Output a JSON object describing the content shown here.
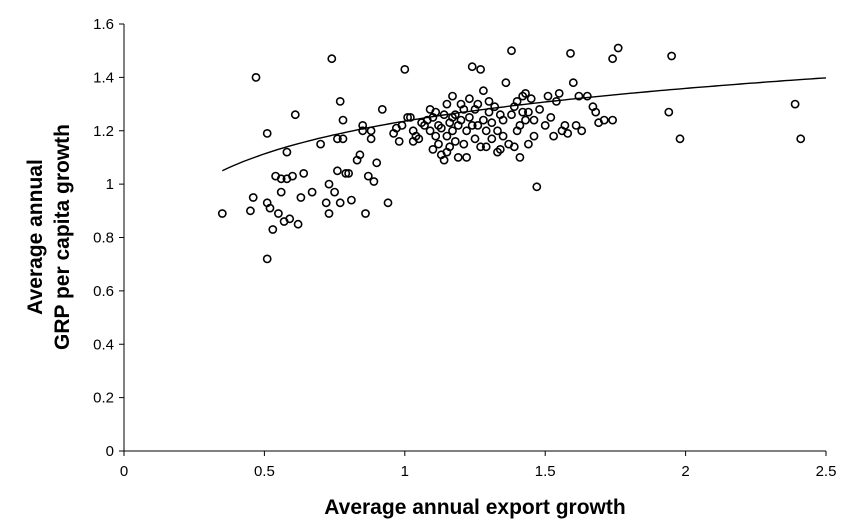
{
  "chart_data": {
    "type": "scatter",
    "title": "",
    "xlabel": "Average annual export growth",
    "ylabel_lines": [
      "Average annual",
      "GRP per capita growth"
    ],
    "xlim": [
      0,
      2.5
    ],
    "ylim": [
      0,
      1.6
    ],
    "x_ticks": [
      "0",
      "0.5",
      "1",
      "1.5",
      "2",
      "2.5"
    ],
    "y_ticks": [
      "0",
      "0.2",
      "0.4",
      "0.6",
      "0.8",
      "1",
      "1.2",
      "1.4",
      "1.6"
    ],
    "grid": false,
    "legend": "none",
    "marker": "open-circle",
    "marker_color": "#000000",
    "trendline": {
      "type": "logarithmic",
      "a": 1.236,
      "b": 0.177,
      "x_range": [
        0.35,
        2.5
      ]
    },
    "points": [
      [
        0.35,
        0.89
      ],
      [
        0.45,
        0.9
      ],
      [
        0.46,
        0.95
      ],
      [
        0.47,
        1.4
      ],
      [
        0.51,
        0.72
      ],
      [
        0.51,
        1.19
      ],
      [
        0.51,
        0.93
      ],
      [
        0.52,
        0.91
      ],
      [
        0.53,
        0.83
      ],
      [
        0.54,
        1.03
      ],
      [
        0.55,
        0.89
      ],
      [
        0.56,
        0.97
      ],
      [
        0.56,
        1.02
      ],
      [
        0.57,
        0.86
      ],
      [
        0.58,
        1.02
      ],
      [
        0.58,
        1.12
      ],
      [
        0.59,
        0.87
      ],
      [
        0.6,
        1.03
      ],
      [
        0.61,
        1.26
      ],
      [
        0.62,
        0.85
      ],
      [
        0.63,
        0.95
      ],
      [
        0.64,
        1.04
      ],
      [
        0.67,
        0.97
      ],
      [
        0.7,
        1.15
      ],
      [
        0.72,
        0.93
      ],
      [
        0.73,
        0.89
      ],
      [
        0.73,
        1.0
      ],
      [
        0.74,
        1.47
      ],
      [
        0.75,
        0.97
      ],
      [
        0.76,
        1.05
      ],
      [
        0.76,
        1.17
      ],
      [
        0.77,
        0.93
      ],
      [
        0.77,
        1.31
      ],
      [
        0.78,
        1.17
      ],
      [
        0.78,
        1.24
      ],
      [
        0.79,
        1.04
      ],
      [
        0.8,
        1.04
      ],
      [
        0.81,
        0.94
      ],
      [
        0.83,
        1.09
      ],
      [
        0.84,
        1.11
      ],
      [
        0.85,
        1.2
      ],
      [
        0.85,
        1.22
      ],
      [
        0.86,
        0.89
      ],
      [
        0.87,
        1.03
      ],
      [
        0.88,
        1.17
      ],
      [
        0.88,
        1.2
      ],
      [
        0.89,
        1.01
      ],
      [
        0.9,
        1.08
      ],
      [
        0.92,
        1.28
      ],
      [
        0.94,
        0.93
      ],
      [
        0.96,
        1.19
      ],
      [
        0.97,
        1.21
      ],
      [
        0.98,
        1.16
      ],
      [
        0.99,
        1.22
      ],
      [
        1.0,
        1.43
      ],
      [
        1.01,
        1.25
      ],
      [
        1.02,
        1.25
      ],
      [
        1.03,
        1.2
      ],
      [
        1.03,
        1.16
      ],
      [
        1.04,
        1.18
      ],
      [
        1.05,
        1.17
      ],
      [
        1.06,
        1.23
      ],
      [
        1.07,
        1.22
      ],
      [
        1.08,
        1.24
      ],
      [
        1.09,
        1.2
      ],
      [
        1.09,
        1.28
      ],
      [
        1.1,
        1.25
      ],
      [
        1.1,
        1.13
      ],
      [
        1.11,
        1.18
      ],
      [
        1.11,
        1.27
      ],
      [
        1.12,
        1.15
      ],
      [
        1.12,
        1.22
      ],
      [
        1.13,
        1.11
      ],
      [
        1.13,
        1.21
      ],
      [
        1.14,
        1.09
      ],
      [
        1.14,
        1.26
      ],
      [
        1.15,
        1.18
      ],
      [
        1.15,
        1.12
      ],
      [
        1.15,
        1.3
      ],
      [
        1.16,
        1.23
      ],
      [
        1.16,
        1.14
      ],
      [
        1.17,
        1.25
      ],
      [
        1.17,
        1.2
      ],
      [
        1.17,
        1.33
      ],
      [
        1.18,
        1.16
      ],
      [
        1.18,
        1.26
      ],
      [
        1.19,
        1.22
      ],
      [
        1.19,
        1.1
      ],
      [
        1.2,
        1.3
      ],
      [
        1.2,
        1.24
      ],
      [
        1.21,
        1.28
      ],
      [
        1.21,
        1.15
      ],
      [
        1.22,
        1.2
      ],
      [
        1.22,
        1.1
      ],
      [
        1.23,
        1.32
      ],
      [
        1.23,
        1.25
      ],
      [
        1.24,
        1.22
      ],
      [
        1.24,
        1.44
      ],
      [
        1.25,
        1.17
      ],
      [
        1.25,
        1.28
      ],
      [
        1.26,
        1.3
      ],
      [
        1.26,
        1.22
      ],
      [
        1.27,
        1.14
      ],
      [
        1.27,
        1.43
      ],
      [
        1.28,
        1.24
      ],
      [
        1.28,
        1.35
      ],
      [
        1.29,
        1.2
      ],
      [
        1.29,
        1.14
      ],
      [
        1.3,
        1.27
      ],
      [
        1.3,
        1.31
      ],
      [
        1.31,
        1.23
      ],
      [
        1.31,
        1.17
      ],
      [
        1.32,
        1.29
      ],
      [
        1.33,
        1.2
      ],
      [
        1.33,
        1.12
      ],
      [
        1.34,
        1.26
      ],
      [
        1.34,
        1.13
      ],
      [
        1.35,
        1.24
      ],
      [
        1.35,
        1.18
      ],
      [
        1.36,
        1.38
      ],
      [
        1.37,
        1.15
      ],
      [
        1.38,
        1.5
      ],
      [
        1.38,
        1.26
      ],
      [
        1.39,
        1.14
      ],
      [
        1.39,
        1.29
      ],
      [
        1.4,
        1.2
      ],
      [
        1.4,
        1.31
      ],
      [
        1.41,
        1.1
      ],
      [
        1.41,
        1.22
      ],
      [
        1.42,
        1.33
      ],
      [
        1.42,
        1.27
      ],
      [
        1.43,
        1.24
      ],
      [
        1.43,
        1.34
      ],
      [
        1.44,
        1.27
      ],
      [
        1.44,
        1.15
      ],
      [
        1.45,
        1.32
      ],
      [
        1.46,
        1.18
      ],
      [
        1.46,
        1.24
      ],
      [
        1.47,
        0.99
      ],
      [
        1.48,
        1.28
      ],
      [
        1.5,
        1.22
      ],
      [
        1.51,
        1.33
      ],
      [
        1.52,
        1.25
      ],
      [
        1.53,
        1.18
      ],
      [
        1.54,
        1.31
      ],
      [
        1.55,
        1.34
      ],
      [
        1.56,
        1.2
      ],
      [
        1.57,
        1.22
      ],
      [
        1.58,
        1.19
      ],
      [
        1.59,
        1.49
      ],
      [
        1.6,
        1.38
      ],
      [
        1.61,
        1.22
      ],
      [
        1.62,
        1.33
      ],
      [
        1.63,
        1.2
      ],
      [
        1.65,
        1.33
      ],
      [
        1.67,
        1.29
      ],
      [
        1.68,
        1.27
      ],
      [
        1.69,
        1.23
      ],
      [
        1.71,
        1.24
      ],
      [
        1.74,
        1.24
      ],
      [
        1.74,
        1.47
      ],
      [
        1.76,
        1.51
      ],
      [
        1.94,
        1.27
      ],
      [
        1.95,
        1.48
      ],
      [
        1.98,
        1.17
      ],
      [
        2.39,
        1.3
      ],
      [
        2.41,
        1.17
      ]
    ]
  }
}
